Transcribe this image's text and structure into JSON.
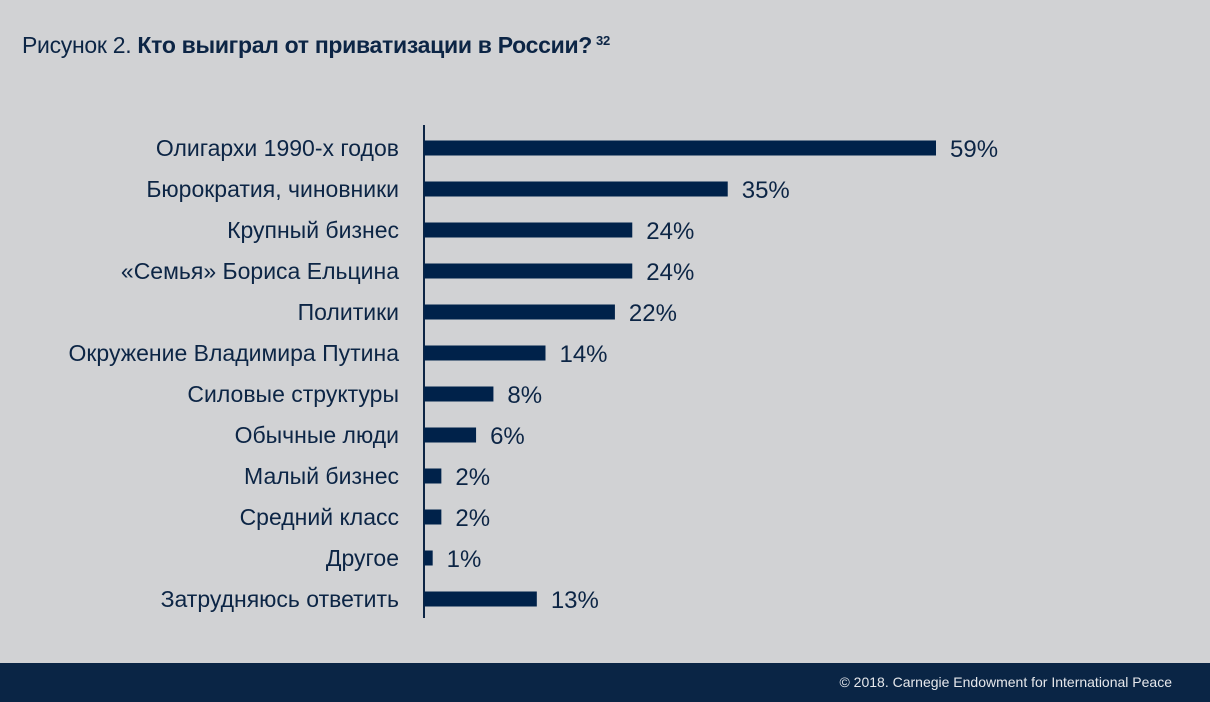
{
  "title": {
    "prefix": "Рисунок 2.",
    "main": "Кто выиграл от приватизации в России?",
    "footnote": "32"
  },
  "footer": {
    "copyright": "© 2018. Carnegie Endowment for International Peace"
  },
  "colors": {
    "bar": "#00224a",
    "background": "#d1d2d4",
    "text": "#0c2545"
  },
  "chart_data": {
    "type": "bar",
    "orientation": "horizontal",
    "title": "Кто выиграл от приватизации в России?",
    "categories": [
      "Олигархи 1990-х годов",
      "Бюрократия, чиновники",
      "Крупный бизнес",
      "«Семья» Бориса Ельцина",
      "Политики",
      "Окружение Владимира Путина",
      "Силовые структуры",
      "Обычные люди",
      "Малый бизнес",
      "Средний класс",
      "Другое",
      "Затрудняюсь ответить"
    ],
    "values": [
      59,
      35,
      24,
      24,
      22,
      14,
      8,
      6,
      2,
      2,
      1,
      13
    ],
    "value_labels": [
      "59%",
      "35%",
      "24%",
      "24%",
      "22%",
      "14%",
      "8%",
      "6%",
      "2%",
      "2%",
      "1%",
      "13%"
    ],
    "xlabel": "",
    "ylabel": "",
    "xlim": [
      0,
      59
    ],
    "grid": false
  }
}
